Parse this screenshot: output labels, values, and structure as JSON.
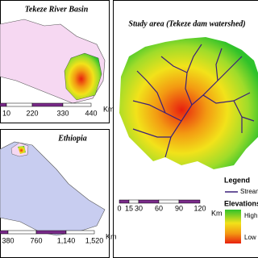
{
  "panels": [
    {
      "title": "Tekeze River Basin",
      "scale_labels": [
        "10",
        "220",
        "330",
        "440"
      ],
      "scale_unit": "Km"
    },
    {
      "title": "Ethiopia",
      "scale_labels": [
        "380",
        "760",
        "1,140",
        "1,520"
      ],
      "scale_unit": "Km"
    },
    {
      "title": "Study area (Tekeze dam watershed)",
      "scale_labels": [
        "0",
        "15",
        "30",
        "60",
        "90",
        "120"
      ],
      "scale_unit": "Km"
    }
  ],
  "legend": {
    "title": "Legend",
    "stream": "Stream",
    "elevation_title": "Elevations",
    "high": "High",
    "low": "Low"
  }
}
